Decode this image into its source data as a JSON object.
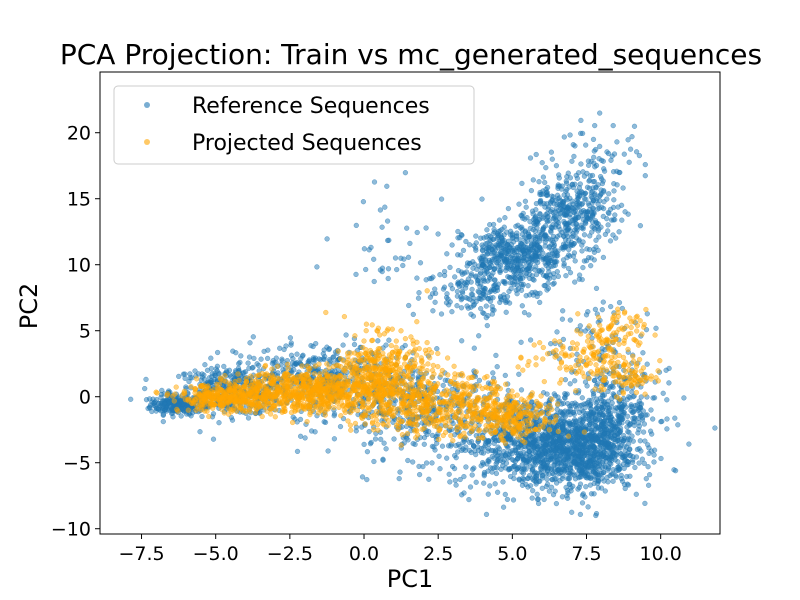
{
  "chart_data": {
    "type": "scatter",
    "title": "PCA Projection: Train vs mc_generated_sequences",
    "xlabel": "PC1",
    "ylabel": "PC2",
    "xlim": [
      -8.9,
      12.0
    ],
    "ylim": [
      -10.4,
      24.6
    ],
    "xticks": [
      -7.5,
      -5.0,
      -2.5,
      0.0,
      2.5,
      5.0,
      7.5,
      10.0
    ],
    "xtick_labels": [
      "−7.5",
      "−5.0",
      "−2.5",
      "0.0",
      "2.5",
      "5.0",
      "7.5",
      "10.0"
    ],
    "yticks": [
      -10,
      -5,
      0,
      5,
      10,
      15,
      20
    ],
    "ytick_labels": [
      "−10",
      "−5",
      "0",
      "5",
      "10",
      "15",
      "20"
    ],
    "grid": false,
    "legend_position": "upper-left",
    "series": [
      {
        "name": "Reference Sequences",
        "color": "#1f77b4",
        "alpha": 0.5,
        "clusters": [
          {
            "cx": -6.3,
            "cy": -0.6,
            "sx": 0.45,
            "sy": 0.35,
            "n": 220
          },
          {
            "cx": -4.5,
            "cy": 0.4,
            "sx": 1.0,
            "sy": 0.9,
            "n": 380
          },
          {
            "cx": -1.5,
            "cy": 1.4,
            "sx": 1.4,
            "sy": 1.4,
            "n": 420
          },
          {
            "cx": 2.0,
            "cy": -1.0,
            "sx": 1.5,
            "sy": 1.8,
            "n": 420
          },
          {
            "cx": 5.5,
            "cy": -3.5,
            "sx": 1.3,
            "sy": 1.8,
            "n": 650
          },
          {
            "cx": 7.2,
            "cy": -4.0,
            "sx": 1.0,
            "sy": 1.6,
            "n": 900
          },
          {
            "cx": 8.4,
            "cy": -1.0,
            "sx": 0.8,
            "sy": 1.5,
            "n": 320
          },
          {
            "cx": 5.2,
            "cy": 10.6,
            "sx": 0.9,
            "sy": 1.2,
            "n": 520
          },
          {
            "cx": 6.8,
            "cy": 13.8,
            "sx": 0.8,
            "sy": 1.5,
            "n": 380
          },
          {
            "cx": 8.0,
            "cy": 17.0,
            "sx": 0.7,
            "sy": 2.0,
            "n": 90
          },
          {
            "cx": 3.8,
            "cy": 8.0,
            "sx": 0.9,
            "sy": 1.0,
            "n": 150
          },
          {
            "cx": 1.0,
            "cy": 11.5,
            "sx": 1.2,
            "sy": 2.0,
            "n": 40
          },
          {
            "cx": 8.0,
            "cy": 4.0,
            "sx": 1.0,
            "sy": 2.0,
            "n": 80
          }
        ]
      },
      {
        "name": "Projected Sequences",
        "color": "#ffa500",
        "alpha": 0.5,
        "clusters": [
          {
            "cx": -4.6,
            "cy": -0.1,
            "sx": 0.8,
            "sy": 0.5,
            "n": 350
          },
          {
            "cx": -2.0,
            "cy": 0.4,
            "sx": 1.2,
            "sy": 0.8,
            "n": 600
          },
          {
            "cx": 0.6,
            "cy": 1.6,
            "sx": 0.8,
            "sy": 1.5,
            "n": 450
          },
          {
            "cx": 2.5,
            "cy": -0.6,
            "sx": 1.4,
            "sy": 1.2,
            "n": 450
          },
          {
            "cx": 5.0,
            "cy": -1.6,
            "sx": 0.8,
            "sy": 0.8,
            "n": 220
          },
          {
            "cx": 7.4,
            "cy": 3.0,
            "sx": 0.9,
            "sy": 1.0,
            "n": 120
          },
          {
            "cx": 8.5,
            "cy": 5.0,
            "sx": 0.5,
            "sy": 0.8,
            "n": 60
          },
          {
            "cx": 8.8,
            "cy": 1.5,
            "sx": 0.5,
            "sy": 0.7,
            "n": 80
          }
        ]
      }
    ]
  }
}
